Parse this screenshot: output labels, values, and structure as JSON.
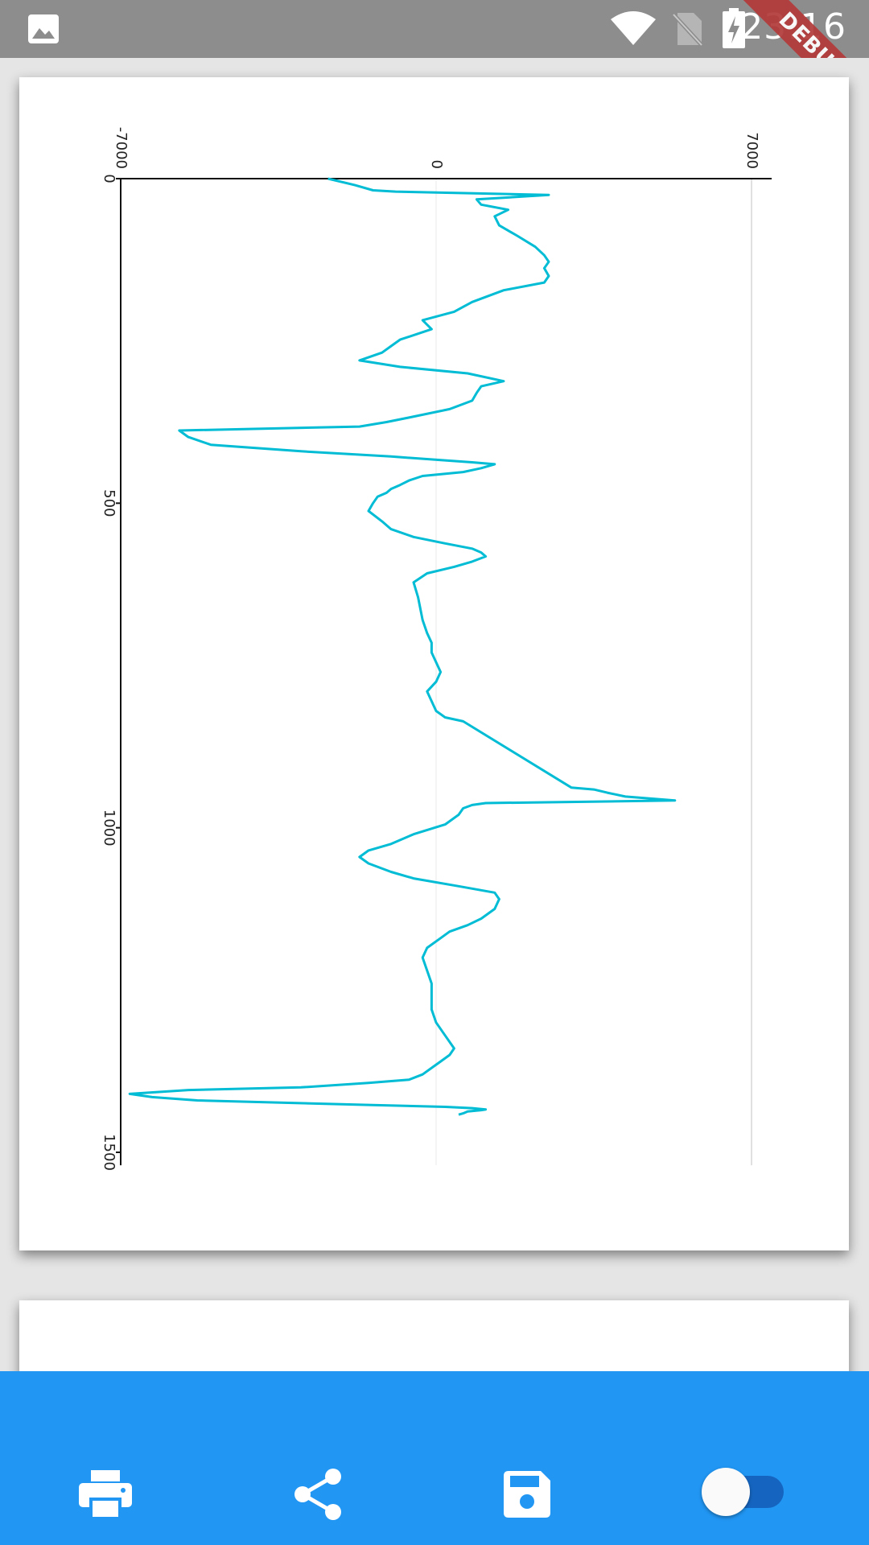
{
  "status_bar": {
    "time": "23:16",
    "icons": [
      "image-icon",
      "wifi-icon",
      "no-sim-icon",
      "battery-charging-icon"
    ]
  },
  "debug_banner": {
    "label": "DEBUG"
  },
  "colors": {
    "status_bar": "#8d8d8d",
    "viewer_background": "#e5e5e5",
    "bottom_bar": "#2196f3",
    "series_line": "#00bcd4",
    "switch_track": "#1565c0"
  },
  "chart_data": {
    "type": "line",
    "orientation": "rotated-90",
    "x_ticks": [
      "0",
      "500",
      "1000",
      "1500"
    ],
    "y_ticks": [
      "-7000",
      "0",
      "7000"
    ],
    "xlim": [
      0,
      1520
    ],
    "ylim": [
      -7000,
      7000
    ],
    "grid": "vertical lines at y ticks",
    "series": [
      {
        "x": [
          0,
          10,
          18,
          20,
          25,
          32,
          40,
          48,
          58,
          72,
          88,
          105,
          118,
          128,
          138,
          150,
          160,
          172,
          190,
          205,
          218,
          232,
          248,
          258,
          268,
          280,
          290,
          300,
          312,
          320,
          330,
          342,
          355,
          368,
          375,
          382,
          388,
          398,
          410,
          420,
          428,
          434,
          437,
          440,
          446,
          452,
          458,
          465,
          472,
          478,
          484,
          490,
          500,
          512,
          528,
          540,
          552,
          562,
          570,
          576,
          582,
          590,
          598,
          608,
          622,
          645,
          680,
          700,
          715,
          730,
          745,
          760,
          775,
          790,
          805,
          820,
          830,
          836,
          938,
          941,
          946,
          952,
          958,
          962,
          965,
          970,
          980,
          995,
          1010,
          1025,
          1035,
          1045,
          1055,
          1068,
          1078,
          1090,
          1100,
          1110,
          1125,
          1140,
          1150,
          1160,
          1170,
          1185,
          1200,
          1220,
          1240,
          1260,
          1280,
          1300,
          1320,
          1340,
          1350,
          1360,
          1370,
          1380,
          1388,
          1393,
          1400,
          1404,
          1410,
          1415,
          1420,
          1427,
          1430,
          1432,
          1434,
          1435,
          1437,
          1440,
          1442
        ],
        "y": [
          -2400,
          -1800,
          -1400,
          -900,
          2500,
          900,
          1000,
          1600,
          1300,
          1400,
          1800,
          2200,
          2400,
          2500,
          2400,
          2500,
          2400,
          1500,
          800,
          400,
          -300,
          -100,
          -800,
          -1000,
          -1200,
          -1700,
          -800,
          700,
          1500,
          1000,
          900,
          800,
          300,
          -600,
          -1100,
          -1700,
          -5700,
          -5500,
          -5000,
          -3000,
          -1000,
          200,
          800,
          1300,
          1000,
          600,
          -300,
          -600,
          -800,
          -1000,
          -1100,
          -1300,
          -1400,
          -1500,
          -1200,
          -1000,
          -500,
          200,
          800,
          1000,
          1100,
          800,
          400,
          -200,
          -500,
          -400,
          -300,
          -200,
          -100,
          -100,
          0,
          100,
          0,
          -200,
          -100,
          0,
          200,
          600,
          3000,
          3500,
          3800,
          4200,
          5300,
          1100,
          800,
          600,
          500,
          200,
          -500,
          -1000,
          -1500,
          -1700,
          -1500,
          -1000,
          -500,
          500,
          1300,
          1400,
          1300,
          1000,
          700,
          300,
          100,
          -200,
          -300,
          -200,
          -100,
          -100,
          -100,
          0,
          200,
          400,
          300,
          100,
          -100,
          -300,
          -600,
          -1500,
          -3000,
          -5500,
          -6800,
          -6300,
          -5300,
          -1500,
          200,
          800,
          1100,
          1000,
          700,
          600,
          500
        ]
      }
    ]
  },
  "bottom_bar": {
    "print": "print-icon",
    "share": "share-icon",
    "save": "save-icon",
    "toggle": "switch"
  }
}
